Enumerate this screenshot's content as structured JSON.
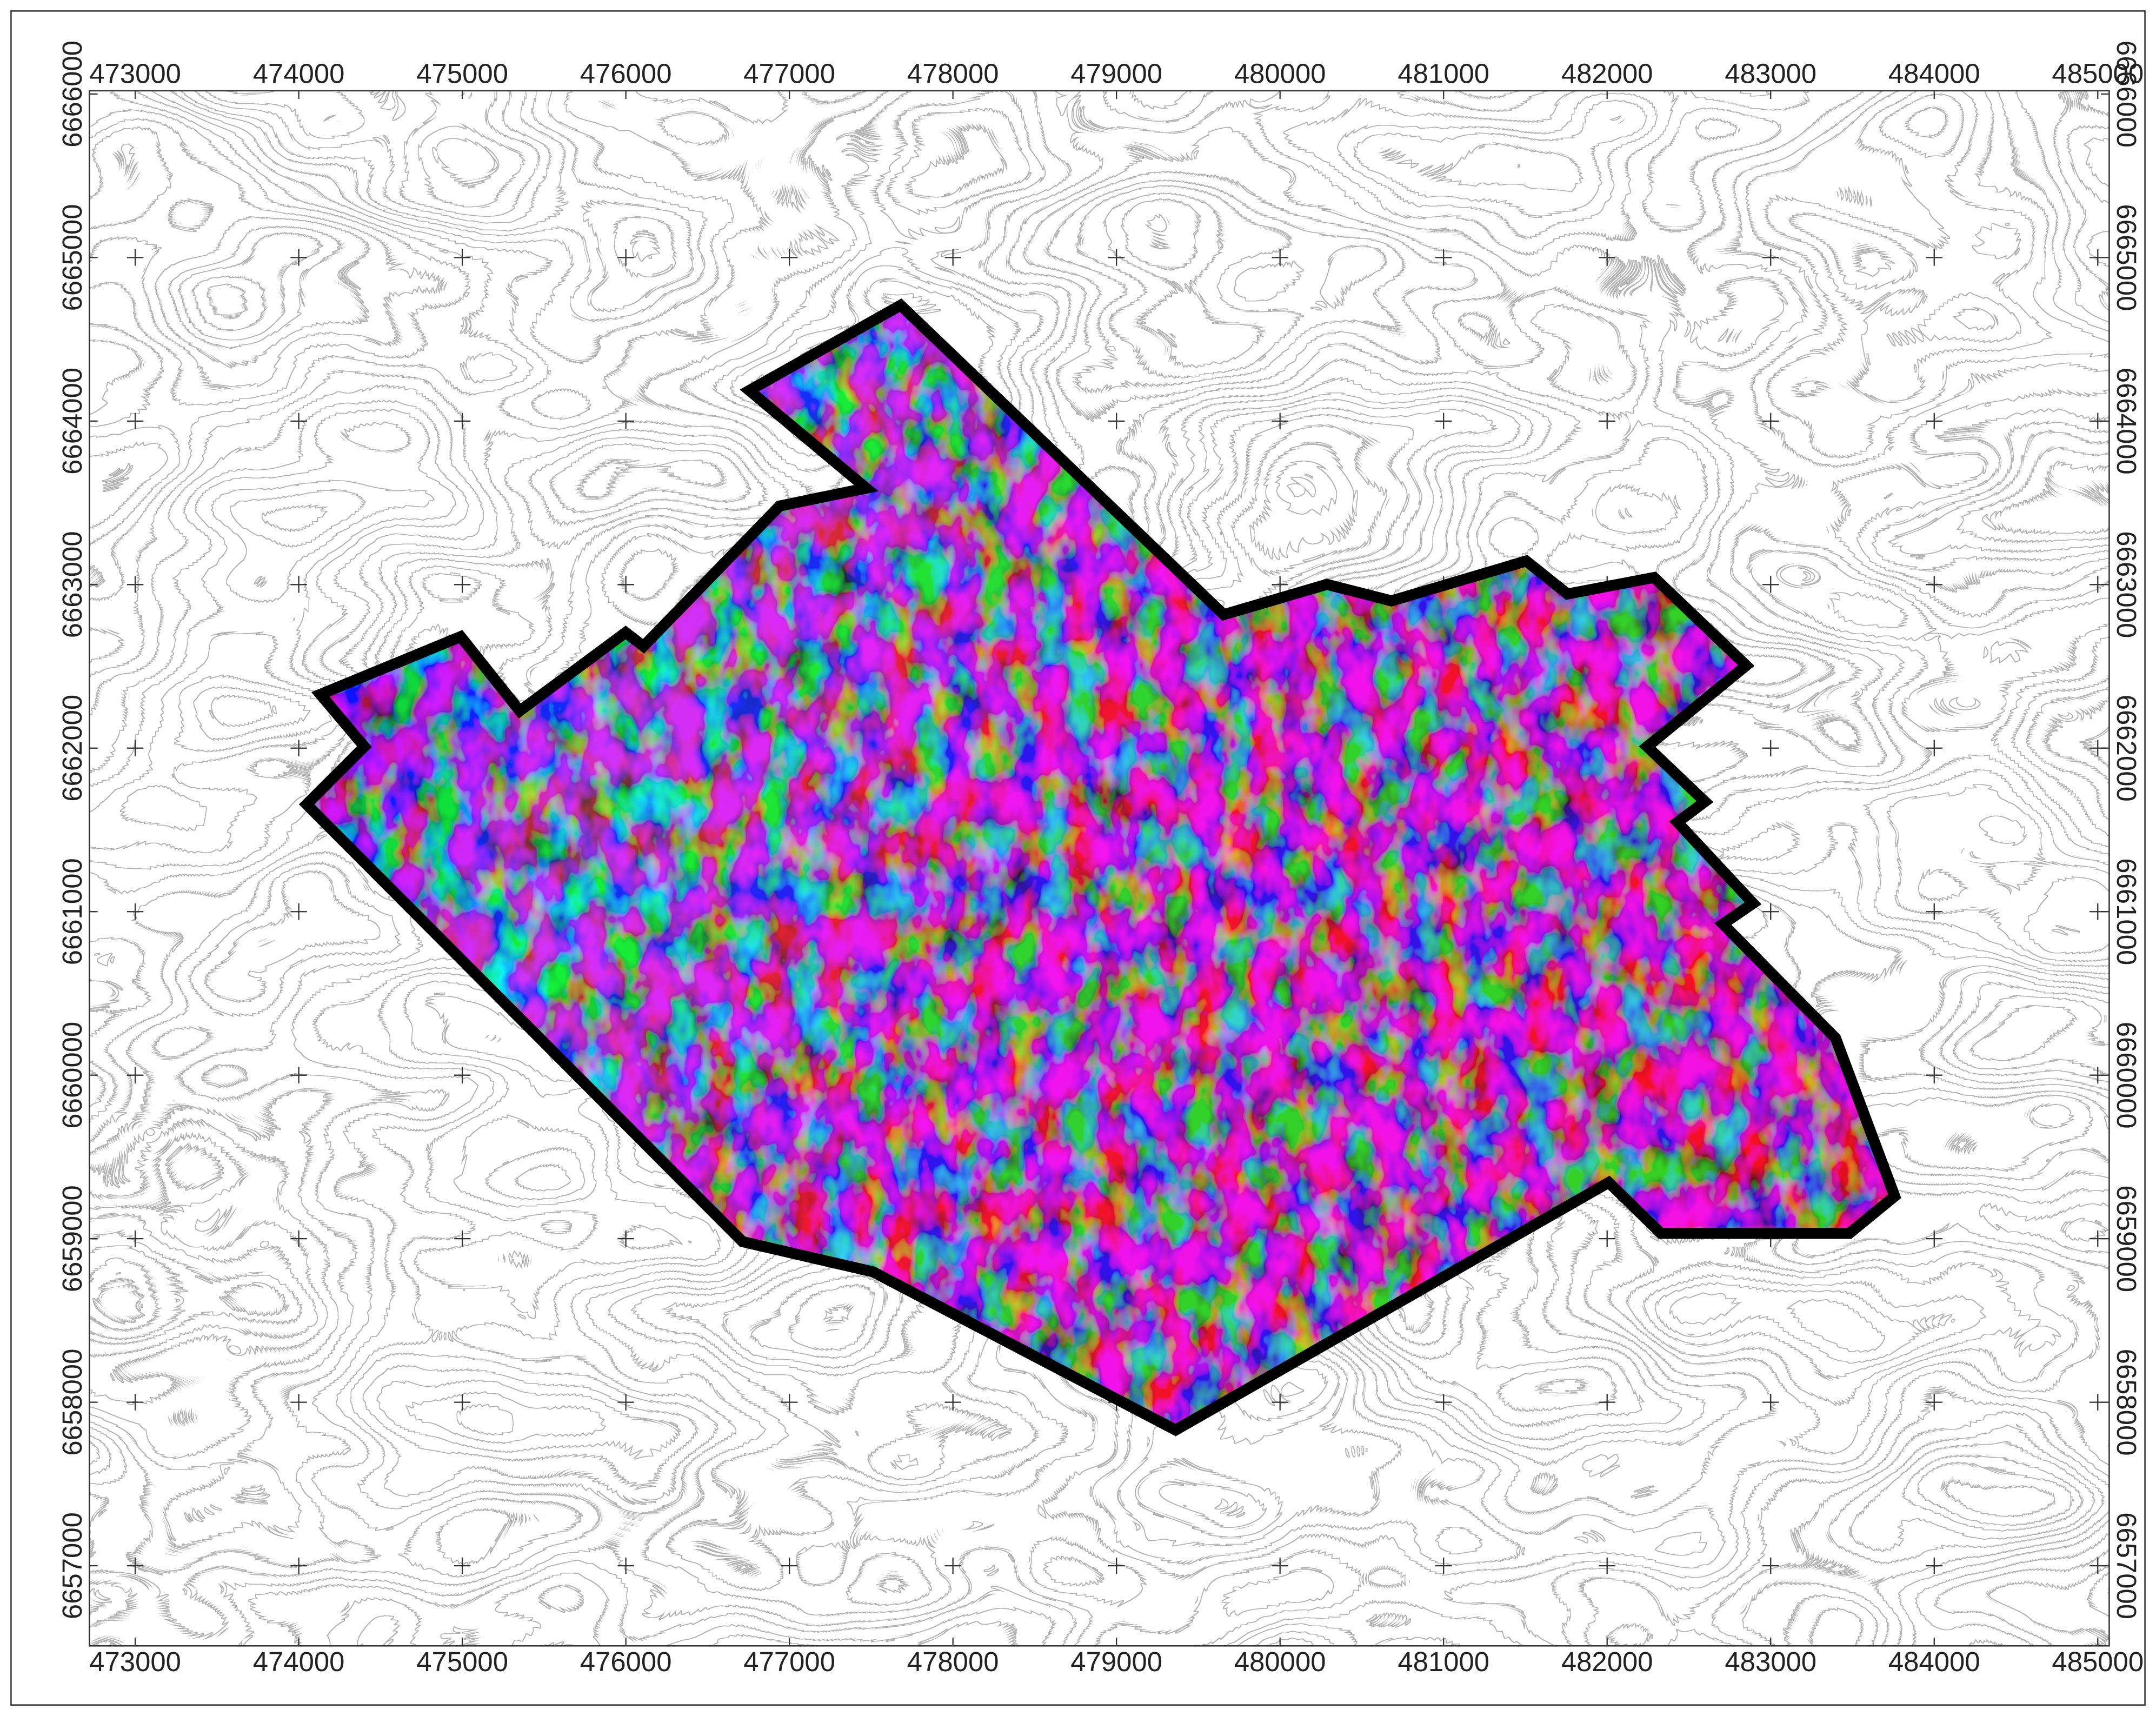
{
  "map": {
    "xlim": [
      472720,
      485070
    ],
    "ylim": [
      6656510,
      6666020
    ],
    "xticks": [
      473000,
      474000,
      475000,
      476000,
      477000,
      478000,
      479000,
      480000,
      481000,
      482000,
      483000,
      484000,
      485000
    ],
    "yticks": [
      6657000,
      6658000,
      6659000,
      6660000,
      6661000,
      6662000,
      6663000,
      6664000,
      6665000,
      6666000
    ]
  }
}
